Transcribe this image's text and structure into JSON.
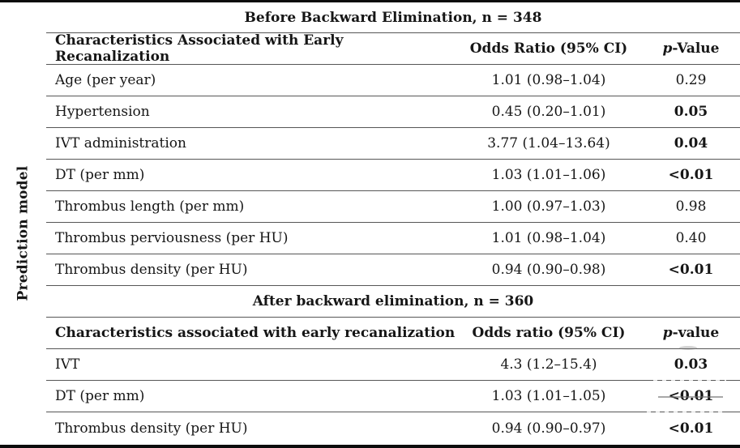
{
  "side_label": "Prediction model",
  "colors": {
    "background": "#ffffff",
    "text": "#161616",
    "row_rule": "#565656",
    "frame": "#0c0c0c"
  },
  "sections": [
    {
      "title": "Before Backward Elimination, n = 348",
      "header": {
        "characteristics": "Characteristics Associated with Early Recanalization",
        "odds_ratio": "Odds Ratio (95% CI)",
        "p_italic": "p",
        "p_rest": "-Value"
      },
      "rows": [
        {
          "characteristic": "Age (per year)",
          "odds_ratio": "1.01 (0.98–1.04)",
          "p_value": "0.29"
        },
        {
          "characteristic": "Hypertension",
          "odds_ratio": "0.45 (0.20–1.01)",
          "p_value": "0.05"
        },
        {
          "characteristic": "IVT administration",
          "odds_ratio": "3.77 (1.04–13.64)",
          "p_value": "0.04"
        },
        {
          "characteristic": "DT (per mm)",
          "odds_ratio": "1.03 (1.01–1.06)",
          "p_value": "<0.01"
        },
        {
          "characteristic": "Thrombus length (per mm)",
          "odds_ratio": "1.00 (0.97–1.03)",
          "p_value": "0.98"
        },
        {
          "characteristic": "Thrombus perviousness (per HU)",
          "odds_ratio": "1.01 (0.98–1.04)",
          "p_value": "0.40"
        },
        {
          "characteristic": "Thrombus density (per HU)",
          "odds_ratio": "0.94 (0.90–0.98)",
          "p_value": "<0.01"
        }
      ]
    },
    {
      "title": "After backward elimination, n = 360",
      "header": {
        "characteristics": "Characteristics associated with early recanalization",
        "odds_ratio": "Odds ratio (95% CI)",
        "p_italic": "p",
        "p_rest": "-value"
      },
      "rows": [
        {
          "characteristic": "IVT",
          "odds_ratio": "4.3 (1.2–15.4)",
          "p_value": "0.03"
        },
        {
          "characteristic": "DT (per mm)",
          "odds_ratio": "1.03 (1.01–1.05)",
          "p_value": "<0.01"
        },
        {
          "characteristic": "Thrombus density (per HU)",
          "odds_ratio": "0.94 (0.90–0.97)",
          "p_value": "<0.01"
        }
      ]
    }
  ]
}
